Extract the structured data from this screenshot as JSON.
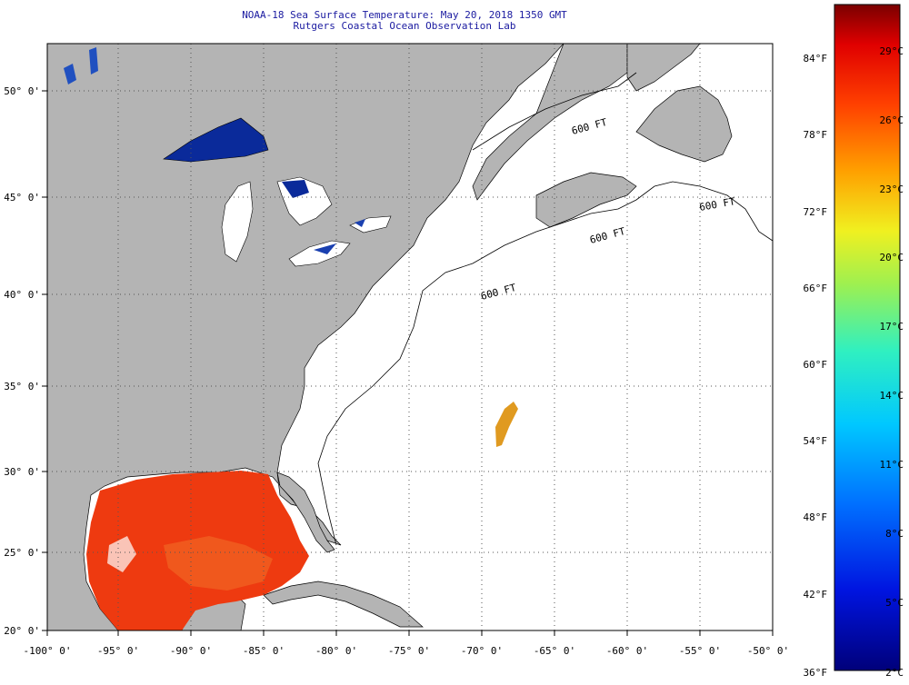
{
  "header": {
    "title_line1": "NOAA-18 Sea Surface Temperature:  May 20, 2018 1350 GMT",
    "title_line2": "Rutgers Coastal Ocean Observation Lab"
  },
  "map": {
    "region": "US East Coast / Northwest Atlantic",
    "lon_range": [
      -100,
      -50
    ],
    "lat_range": [
      20,
      52.5
    ],
    "lon_ticks": [
      "-100° 0'",
      "-95° 0'",
      "-90° 0'",
      "-85° 0'",
      "-80° 0'",
      "-75° 0'",
      "-70° 0'",
      "-65° 0'",
      "-60° 0'",
      "-55° 0'",
      "-50° 0'"
    ],
    "lat_ticks": [
      "50° 0'",
      "45° 0'",
      "40° 0'",
      "35° 0'",
      "30° 0'",
      "25° 0'",
      "20° 0'"
    ],
    "isobath_labels": [
      "600 FT",
      "600 FT",
      "600 FT",
      "600 FT"
    ],
    "colors": {
      "land": "#b4b4b4",
      "no_data": "#ffffff",
      "gulf_sst": "#ee3a10",
      "lake_superior": "#0a2a9a",
      "offshore_patch": "#e09a20"
    }
  },
  "colorbar": {
    "fahrenheit_labels": [
      "84°F",
      "78°F",
      "72°F",
      "66°F",
      "60°F",
      "54°F",
      "48°F",
      "42°F",
      "36°F"
    ],
    "celsius_labels": [
      "29°C",
      "26°C",
      "23°C",
      "20°C",
      "17°C",
      "14°C",
      "11°C",
      "8°C",
      "5°C",
      "2°C"
    ]
  }
}
